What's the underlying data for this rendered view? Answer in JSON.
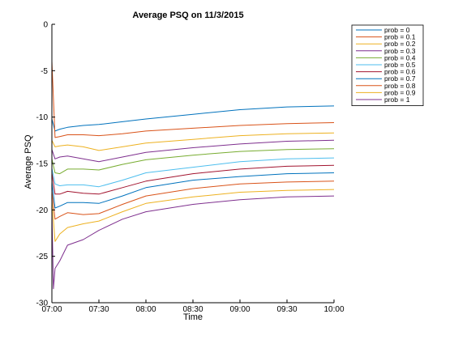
{
  "chart_data": {
    "type": "line",
    "title": "Average PSQ on 11/3/2015",
    "xlabel": "Time",
    "ylabel": "Average PSQ",
    "x_ticks": [
      "07:00",
      "07:30",
      "08:00",
      "08:30",
      "09:00",
      "09:30",
      "10:00"
    ],
    "x_range": [
      "07:00",
      "10:00"
    ],
    "y_ticks": [
      0,
      -5,
      -10,
      -15,
      -20,
      -25,
      -30
    ],
    "ylim": [
      -30,
      0
    ],
    "grid": false,
    "legend_position": "top-right, outside axes",
    "series": [
      {
        "name": "prob = 0",
        "color": "#0072BD",
        "x": [
          "07:00",
          "07:02",
          "07:05",
          "07:10",
          "07:20",
          "07:30",
          "07:45",
          "08:00",
          "08:30",
          "09:00",
          "09:30",
          "10:00"
        ],
        "y": [
          -10.2,
          -11.5,
          -11.3,
          -11.1,
          -10.9,
          -10.8,
          -10.5,
          -10.2,
          -9.7,
          -9.2,
          -8.9,
          -8.8
        ]
      },
      {
        "name": "prob = 0.1",
        "color": "#D95319",
        "x": [
          "07:00",
          "07:02",
          "07:05",
          "07:10",
          "07:20",
          "07:30",
          "07:45",
          "08:00",
          "08:30",
          "09:00",
          "09:30",
          "10:00"
        ],
        "y": [
          -4.0,
          -12.2,
          -12.1,
          -11.9,
          -11.9,
          -12.0,
          -11.8,
          -11.5,
          -11.2,
          -10.9,
          -10.7,
          -10.6
        ]
      },
      {
        "name": "prob = 0.2",
        "color": "#EDB120",
        "x": [
          "07:00",
          "07:02",
          "07:05",
          "07:10",
          "07:20",
          "07:30",
          "07:45",
          "08:00",
          "08:30",
          "09:00",
          "09:30",
          "10:00"
        ],
        "y": [
          -12.5,
          -13.2,
          -13.1,
          -13.0,
          -13.2,
          -13.6,
          -13.2,
          -12.8,
          -12.4,
          -12.0,
          -11.8,
          -11.7
        ]
      },
      {
        "name": "prob = 0.3",
        "color": "#7E2F8E",
        "x": [
          "07:00",
          "07:02",
          "07:05",
          "07:10",
          "07:20",
          "07:30",
          "07:45",
          "08:00",
          "08:30",
          "09:00",
          "09:30",
          "10:00"
        ],
        "y": [
          -13.5,
          -14.5,
          -14.3,
          -14.2,
          -14.5,
          -14.8,
          -14.3,
          -13.8,
          -13.3,
          -12.9,
          -12.6,
          -12.5
        ]
      },
      {
        "name": "prob = 0.4",
        "color": "#77AC30",
        "x": [
          "07:00",
          "07:02",
          "07:05",
          "07:10",
          "07:20",
          "07:30",
          "07:45",
          "08:00",
          "08:30",
          "09:00",
          "09:30",
          "10:00"
        ],
        "y": [
          -14.5,
          -16.0,
          -16.1,
          -15.6,
          -15.6,
          -15.7,
          -15.1,
          -14.6,
          -14.1,
          -13.7,
          -13.5,
          -13.4
        ]
      },
      {
        "name": "prob = 0.5",
        "color": "#4DBEEE",
        "x": [
          "07:00",
          "07:02",
          "07:05",
          "07:10",
          "07:20",
          "07:30",
          "07:45",
          "08:00",
          "08:30",
          "09:00",
          "09:30",
          "10:00"
        ],
        "y": [
          -15.5,
          -17.2,
          -17.4,
          -17.3,
          -17.3,
          -17.5,
          -16.8,
          -16.0,
          -15.4,
          -14.8,
          -14.5,
          -14.4
        ]
      },
      {
        "name": "prob = 0.6",
        "color": "#A2142F",
        "x": [
          "07:00",
          "07:02",
          "07:05",
          "07:10",
          "07:20",
          "07:30",
          "07:45",
          "08:00",
          "08:30",
          "09:00",
          "09:30",
          "10:00"
        ],
        "y": [
          -16.0,
          -18.3,
          -18.3,
          -18.0,
          -18.2,
          -18.3,
          -17.6,
          -16.9,
          -16.1,
          -15.6,
          -15.3,
          -15.2
        ]
      },
      {
        "name": "prob = 0.7",
        "color": "#0072BD",
        "x": [
          "07:00",
          "07:02",
          "07:05",
          "07:10",
          "07:20",
          "07:30",
          "07:45",
          "08:00",
          "08:30",
          "09:00",
          "09:30",
          "10:00"
        ],
        "y": [
          -17.0,
          -19.8,
          -19.6,
          -19.2,
          -19.2,
          -19.3,
          -18.5,
          -17.6,
          -16.8,
          -16.4,
          -16.1,
          -16.0
        ]
      },
      {
        "name": "prob = 0.8",
        "color": "#D95319",
        "x": [
          "07:00",
          "07:02",
          "07:05",
          "07:10",
          "07:20",
          "07:30",
          "07:45",
          "08:00",
          "08:30",
          "09:00",
          "09:30",
          "10:00"
        ],
        "y": [
          -18.0,
          -21.0,
          -20.7,
          -20.3,
          -20.5,
          -20.4,
          -19.4,
          -18.5,
          -17.7,
          -17.2,
          -17.0,
          -16.9
        ]
      },
      {
        "name": "prob = 0.9",
        "color": "#EDB120",
        "x": [
          "07:00",
          "07:02",
          "07:05",
          "07:10",
          "07:20",
          "07:30",
          "07:45",
          "08:00",
          "08:30",
          "09:00",
          "09:30",
          "10:00"
        ],
        "y": [
          -19.0,
          -23.4,
          -22.6,
          -21.9,
          -21.5,
          -21.2,
          -20.2,
          -19.3,
          -18.6,
          -18.1,
          -17.9,
          -17.8
        ]
      },
      {
        "name": "prob = 1",
        "color": "#7E2F8E",
        "x": [
          "07:00",
          "07:01",
          "07:02",
          "07:05",
          "07:10",
          "07:20",
          "07:30",
          "07:45",
          "08:00",
          "08:30",
          "09:00",
          "09:30",
          "10:00"
        ],
        "y": [
          -20.0,
          -28.5,
          -26.3,
          -25.5,
          -23.8,
          -23.2,
          -22.2,
          -21.0,
          -20.2,
          -19.4,
          -18.9,
          -18.6,
          -18.5
        ]
      }
    ]
  }
}
